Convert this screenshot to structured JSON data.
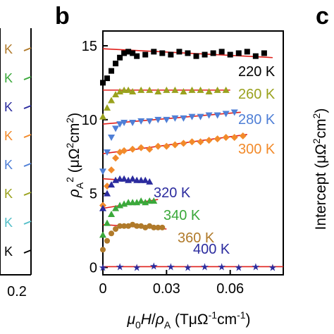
{
  "chart_data": {
    "type": "scatter",
    "panel_labels": {
      "main": "b",
      "right": "c"
    },
    "xlim": [
      0,
      0.085
    ],
    "ylim": [
      -0.5,
      16
    ],
    "x_ticks": [
      {
        "value": 0,
        "label": "0"
      },
      {
        "value": 0.03,
        "label": "0.03"
      },
      {
        "value": 0.06,
        "label": "0.06"
      }
    ],
    "y_ticks": [
      {
        "value": 0,
        "label": "0"
      },
      {
        "value": 5,
        "label": "5"
      },
      {
        "value": 10,
        "label": "10"
      },
      {
        "value": 15,
        "label": "15"
      }
    ],
    "xlabel": "μ0H/ρA (TμΩ⁻¹cm⁻¹)",
    "ylabel": "ρA² (μΩ²cm²)",
    "right_panel_ylabel": "Intercept (μΩ²cm²)",
    "left_panel": {
      "x_tick": "0.2",
      "k_labels": [
        "K",
        "K",
        "K",
        "K",
        "K",
        "K",
        "K",
        "K"
      ],
      "colors": [
        "#b07a2a",
        "#3aa83a",
        "#2b2b9e",
        "#f28a2a",
        "#4f7fd6",
        "#9aa21e",
        "#55bfc8",
        "#000000"
      ]
    },
    "series": [
      {
        "name": "220 K",
        "color": "#000000",
        "marker": "square",
        "x": [
          0.0,
          0.002,
          0.004,
          0.006,
          0.008,
          0.01,
          0.012,
          0.014,
          0.016,
          0.02,
          0.024,
          0.028,
          0.032,
          0.036,
          0.04,
          0.044,
          0.048,
          0.052,
          0.056,
          0.06,
          0.064,
          0.068,
          0.072,
          0.076
        ],
        "y": [
          12.5,
          12.8,
          13.3,
          13.8,
          14.2,
          14.5,
          14.6,
          14.5,
          14.3,
          14.4,
          14.6,
          14.5,
          14.4,
          14.6,
          14.5,
          14.3,
          14.4,
          14.5,
          14.6,
          14.4,
          14.5,
          14.6,
          14.3,
          14.5
        ],
        "fit": {
          "x": [
            0,
            0.08
          ],
          "y": [
            14.8,
            14.2
          ]
        }
      },
      {
        "name": "260 K",
        "color": "#9aa21e",
        "marker": "triangle-up",
        "x": [
          0.0,
          0.002,
          0.004,
          0.006,
          0.008,
          0.01,
          0.012,
          0.014,
          0.018,
          0.022,
          0.026,
          0.03,
          0.034,
          0.038,
          0.042,
          0.046,
          0.05,
          0.054,
          0.058
        ],
        "y": [
          10.2,
          10.8,
          11.3,
          11.7,
          11.9,
          12.0,
          12.0,
          11.9,
          12.0,
          12.0,
          11.9,
          12.0,
          12.0,
          11.9,
          12.0,
          12.0,
          11.9,
          12.0,
          12.0
        ],
        "fit": {
          "x": [
            0,
            0.06
          ],
          "y": [
            12.0,
            12.0
          ]
        }
      },
      {
        "name": "280 K",
        "color": "#4f7fd6",
        "marker": "triangle-down",
        "x": [
          0.0,
          0.002,
          0.004,
          0.006,
          0.008,
          0.01,
          0.014,
          0.018,
          0.022,
          0.026,
          0.03,
          0.034,
          0.038,
          0.042,
          0.046,
          0.05,
          0.054,
          0.058,
          0.062
        ],
        "y": [
          6.5,
          7.8,
          8.8,
          9.4,
          9.7,
          9.8,
          9.8,
          9.9,
          9.9,
          10.0,
          10.0,
          10.1,
          10.1,
          10.2,
          10.2,
          10.3,
          10.3,
          10.4,
          10.5
        ],
        "fit": {
          "x": [
            0,
            0.065
          ],
          "y": [
            9.7,
            10.5
          ]
        }
      },
      {
        "name": "300 K",
        "color": "#f28a2a",
        "marker": "diamond",
        "x": [
          0.0,
          0.002,
          0.004,
          0.006,
          0.008,
          0.01,
          0.014,
          0.018,
          0.022,
          0.026,
          0.03,
          0.034,
          0.038,
          0.042,
          0.046,
          0.05,
          0.054,
          0.058,
          0.062,
          0.066
        ],
        "y": [
          4.2,
          5.5,
          6.6,
          7.4,
          7.8,
          7.9,
          8.0,
          8.1,
          8.0,
          8.2,
          8.2,
          8.3,
          8.4,
          8.5,
          8.5,
          8.6,
          8.7,
          8.8,
          8.8,
          8.9
        ],
        "fit": {
          "x": [
            0,
            0.068
          ],
          "y": [
            7.7,
            9.0
          ]
        }
      },
      {
        "name": "320 K",
        "color": "#2b2b9e",
        "marker": "triangle-up",
        "x": [
          0.0,
          0.002,
          0.004,
          0.006,
          0.008,
          0.01,
          0.012,
          0.014,
          0.016,
          0.018,
          0.02,
          0.022
        ],
        "y": [
          4.0,
          5.0,
          5.6,
          5.9,
          6.0,
          6.0,
          5.9,
          6.0,
          5.9,
          5.9,
          5.9,
          5.8
        ],
        "fit": {
          "x": [
            0,
            0.022
          ],
          "y": [
            6.0,
            5.8
          ]
        }
      },
      {
        "name": "340 K",
        "color": "#3aa83a",
        "marker": "triangle-up",
        "x": [
          0.0,
          0.002,
          0.004,
          0.006,
          0.008,
          0.01,
          0.012,
          0.014,
          0.016,
          0.018,
          0.02,
          0.022,
          0.024
        ],
        "y": [
          2.2,
          3.0,
          3.6,
          4.0,
          4.2,
          4.3,
          4.4,
          4.4,
          4.4,
          4.5,
          4.4,
          4.5,
          4.5
        ],
        "fit": {
          "x": [
            0,
            0.026
          ],
          "y": [
            4.0,
            4.6
          ]
        }
      },
      {
        "name": "360 K",
        "color": "#b07a2a",
        "marker": "circle",
        "x": [
          0.0,
          0.002,
          0.004,
          0.006,
          0.008,
          0.01,
          0.012,
          0.014,
          0.016,
          0.018,
          0.02,
          0.022,
          0.024,
          0.026,
          0.028
        ],
        "y": [
          1.2,
          1.8,
          2.3,
          2.6,
          2.8,
          2.8,
          2.8,
          2.9,
          2.8,
          2.8,
          2.7,
          2.8,
          2.7,
          2.7,
          2.7
        ],
        "fit": {
          "x": [
            0,
            0.03
          ],
          "y": [
            2.9,
            2.6
          ]
        }
      },
      {
        "name": "400 K",
        "color": "#2b2b9e",
        "marker": "star",
        "x": [
          0.0,
          0.008,
          0.016,
          0.024,
          0.032,
          0.04,
          0.048,
          0.056,
          0.064,
          0.072,
          0.08
        ],
        "y": [
          0.0,
          0.05,
          0.0,
          0.1,
          0.05,
          0.0,
          0.05,
          0.05,
          0.0,
          0.05,
          0.0
        ],
        "fit": {
          "x": [
            0,
            0.085
          ],
          "y": [
            0.05,
            0.05
          ]
        }
      }
    ],
    "label_colors": {
      "220 K": "#000000",
      "260 K": "#9aa21e",
      "280 K": "#4f7fd6",
      "300 K": "#f28a2a",
      "320 K": "#2b2b9e",
      "340 K": "#3aa83a",
      "360 K": "#b07a2a",
      "400 K": "#2b2b9e"
    },
    "fit_color": "#e0201b",
    "grid": false
  }
}
